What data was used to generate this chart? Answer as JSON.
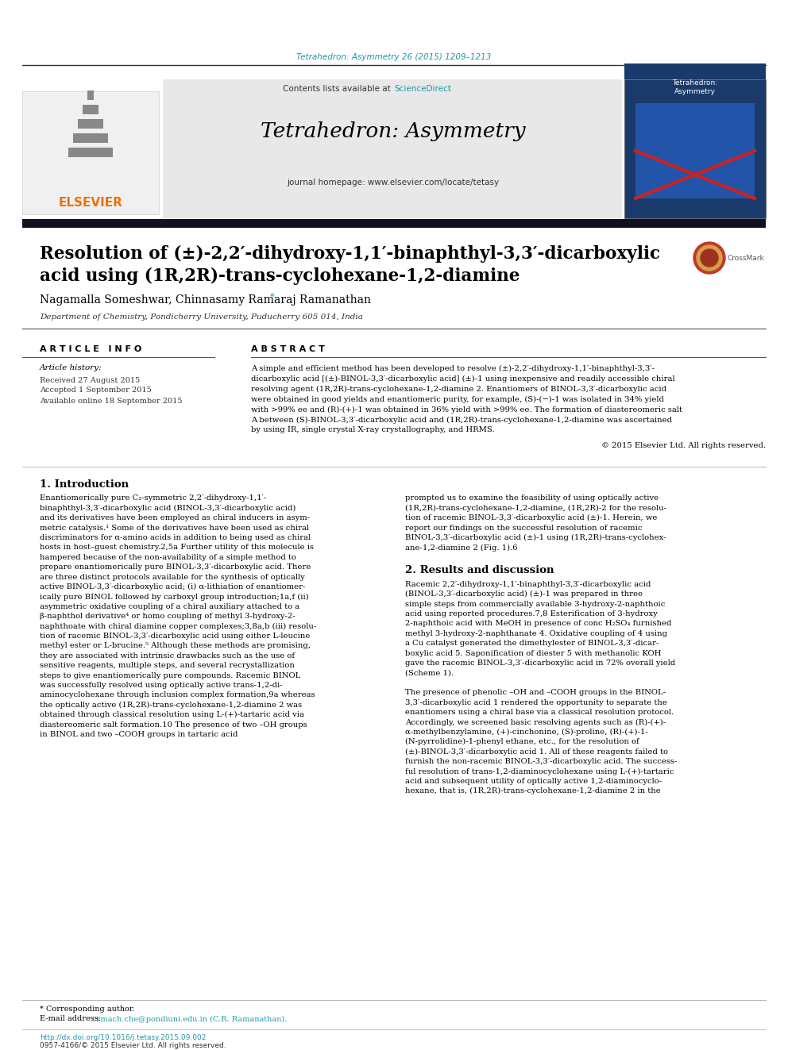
{
  "page_bg": "#ffffff",
  "top_journal_ref": "Tetrahedron: Asymmetry 26 (2015) 1209–1213",
  "top_journal_ref_color": "#2196a8",
  "header_bg": "#e8e8e8",
  "header_contents_pre": "Contents lists available at ",
  "header_sciencedirect": "ScienceDirect",
  "header_sciencedirect_color": "#2196a8",
  "header_journal_title": "Tetrahedron: Asymmetry",
  "header_homepage": "journal homepage: www.elsevier.com/locate/tetasy",
  "elsevier_color": "#f07000",
  "divider_color": "#1a1a2e",
  "article_title_line1": "Resolution of (±)-2,2′-dihydroxy-1,1′-binaphthyl-3,3′-dicarboxylic",
  "article_title_line2": "acid using (1R,2R)-trans-cyclohexane-1,2-diamine",
  "authors_pre": "Nagamalla Someshwar, Chinnasamy Ramaraj Ramanathan",
  "authors_star": "*",
  "affiliation": "Department of Chemistry, Pondicherry University, Puducherry 605 014, India",
  "section_article_info": "A R T I C L E   I N F O",
  "section_abstract": "A B S T R A C T",
  "article_history_label": "Article history:",
  "received": "Received 27 August 2015",
  "accepted": "Accepted 1 September 2015",
  "available": "Available online 18 September 2015",
  "copyright": "© 2015 Elsevier Ltd. All rights reserved.",
  "intro_heading": "1. Introduction",
  "results_heading": "2. Results and discussion",
  "footer_corresponding": "* Corresponding author.",
  "footer_email_label": "E-mail address:",
  "footer_email": "crmach.che@pondiuni.edu.in (C.R. Ramanathan).",
  "footer_doi": "http://dx.doi.org/10.1016/j.tetasy.2015.09.002",
  "footer_issn": "0957-4166/© 2015 Elsevier Ltd. All rights reserved.",
  "text_color": "#000000",
  "link_color": "#2196a8",
  "abstract_lines": [
    "A simple and efficient method has been developed to resolve (±)-2,2′-dihydroxy-1,1′-binaphthyl-3,3′-",
    "dicarboxylic acid [(±)-BINOL-3,3′-dicarboxylic acid] (±)-1 using inexpensive and readily accessible chiral",
    "resolving agent (1R,2R)-trans-cyclohexane-1,2-diamine 2. Enantiomers of BINOL-3,3′-dicarboxylic acid",
    "were obtained in good yields and enantiomeric purity, for example, (S)-(−)-1 was isolated in 34% yield",
    "with >99% ee and (R)-(+)-1 was obtained in 36% yield with >99% ee. The formation of diastereomeric salt",
    "A between (S)-BINOL-3,3′-dicarboxylic acid and (1R,2R)-trans-cyclohexane-1,2-diamine was ascertained",
    "by using IR, single crystal X-ray crystallography, and HRMS."
  ],
  "intro_col1_lines": [
    "Enantiomerically pure C₂-symmetric 2,2′-dihydroxy-1,1′-",
    "binaphthyl-3,3′-dicarboxylic acid (BINOL-3,3′-dicarboxylic acid)",
    "and its derivatives have been employed as chiral inducers in asym-",
    "metric catalysis.¹ Some of the derivatives have been used as chiral",
    "discriminators for α-amino acids in addition to being used as chiral",
    "hosts in host–guest chemistry.2,5a Further utility of this molecule is",
    "hampered because of the non-availability of a simple method to",
    "prepare enantiomerically pure BINOL-3,3′-dicarboxylic acid. There",
    "are three distinct protocols available for the synthesis of optically",
    "active BINOL-3,3′-dicarboxylic acid; (i) α-lithiation of enantiomer-",
    "ically pure BINOL followed by carboxyl group introduction;1a,f (ii)",
    "asymmetric oxidative coupling of a chiral auxiliary attached to a",
    "β-naphthol derivative⁴ or homo coupling of methyl 3-hydroxy-2-",
    "naphthoate with chiral diamine copper complexes;3,8a,b (iii) resolu-",
    "tion of racemic BINOL-3,3′-dicarboxylic acid using either L-leucine",
    "methyl ester or L-brucine.⁵ Although these methods are promising,",
    "they are associated with intrinsic drawbacks such as the use of",
    "sensitive reagents, multiple steps, and several recrystallization",
    "steps to give enantiomerically pure compounds. Racemic BINOL",
    "was successfully resolved using optically active trans-1,2-di-",
    "aminocyclohexane through inclusion complex formation,9a whereas",
    "the optically active (1R,2R)-trans-cyclohexane-1,2-diamine 2 was",
    "obtained through classical resolution using L-(+)-tartaric acid via",
    "diastereomeric salt formation.10 The presence of two –OH groups",
    "in BINOL and two –COOH groups in tartaric acid"
  ],
  "intro_col2_lines": [
    "prompted us to examine the feasibility of using optically active",
    "(1R,2R)-trans-cyclohexane-1,2-diamine, (1R,2R)-2 for the resolu-",
    "tion of racemic BINOL-3,3′-dicarboxylic acid (±)-1. Herein, we",
    "report our findings on the successful resolution of racemic",
    "BINOL-3,3′-dicarboxylic acid (±)-1 using (1R,2R)-trans-cyclohex-",
    "ane-1,2-diamine 2 (Fig. 1).6"
  ],
  "results_col2_lines": [
    "Racemic 2,2′-dihydroxy-1,1′-binaphthyl-3,3′-dicarboxylic acid",
    "(BINOL-3,3′-dicarboxylic acid) (±)-1 was prepared in three",
    "simple steps from commercially available 3-hydroxy-2-naphthoic",
    "acid using reported procedures.7,8 Esterification of 3-hydroxy",
    "2-naphthoic acid with MeOH in presence of conc H₂SO₄ furnished",
    "methyl 3-hydroxy-2-naphthanate 4. Oxidative coupling of 4 using",
    "a Cu catalyst generated the dimethylester of BINOL-3,3′-dicar-",
    "boxylic acid 5. Saponification of diester 5 with methanolic KOH",
    "gave the racemic BINOL-3,3′-dicarboxylic acid in 72% overall yield",
    "(Scheme 1).",
    "",
    "The presence of phenolic –OH and –COOH groups in the BINOL-",
    "3,3′-dicarboxylic acid 1 rendered the opportunity to separate the",
    "enantiomers using a chiral base via a classical resolution protocol.",
    "Accordingly, we screened basic resolving agents such as (R)-(+)-",
    "α-methylbenzylamine, (+)-cinchonine, (S)-proline, (R)-(+)-1-",
    "(N-pyrrolidine)-1-phenyl ethane, etc., for the resolution of",
    "(±)-BINOL-3,3′-dicarboxylic acid 1. All of these reagents failed to",
    "furnish the non-racemic BINOL-3,3′-dicarboxylic acid. The success-",
    "ful resolution of trans-1,2-diaminocyclohexane using L-(+)-tartaric",
    "acid and subsequent utility of optically active 1,2-diaminocyclo-",
    "hexane, that is, (1R,2R)-trans-cyclohexane-1,2-diamine 2 in the"
  ]
}
